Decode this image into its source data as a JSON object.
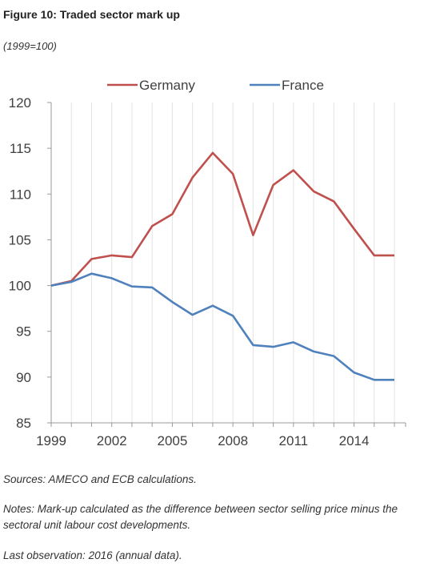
{
  "header": {
    "title": "Figure 10: Traded sector mark up",
    "subtitle": "(1999=100)"
  },
  "footer": {
    "sources": "Sources: AMECO and ECB calculations.",
    "notes": "Notes: Mark-up calculated as the difference between sector selling price minus the sectoral unit labour cost developments.",
    "last_observation": "Last observation: 2016 (annual data)."
  },
  "chart_data": {
    "type": "line",
    "title": "",
    "xlabel": "",
    "ylabel": "",
    "x": [
      1999,
      2000,
      2001,
      2002,
      2003,
      2004,
      2005,
      2006,
      2007,
      2008,
      2009,
      2010,
      2011,
      2012,
      2013,
      2014,
      2015,
      2016
    ],
    "x_tick_labels": [
      "1999",
      "2002",
      "2005",
      "2008",
      "2011",
      "2014"
    ],
    "x_ticks": [
      1999,
      2002,
      2005,
      2008,
      2011,
      2014
    ],
    "xlim": [
      1999,
      2016
    ],
    "ylim": [
      85,
      120
    ],
    "y_ticks": [
      85,
      90,
      95,
      100,
      105,
      110,
      115,
      120
    ],
    "y_tick_labels": [
      "85",
      "90",
      "95",
      "100",
      "105",
      "110",
      "115",
      "120"
    ],
    "grid": "vertical",
    "legend": "top-center",
    "series": [
      {
        "name": "Germany",
        "color": "#c0504d",
        "values": [
          100.0,
          100.5,
          102.9,
          103.3,
          103.1,
          106.5,
          107.8,
          111.8,
          114.5,
          112.2,
          105.5,
          111.0,
          112.6,
          110.3,
          109.2,
          106.2,
          103.3,
          103.3
        ]
      },
      {
        "name": "France",
        "color": "#4f81bd",
        "values": [
          100.0,
          100.4,
          101.3,
          100.8,
          99.9,
          99.8,
          98.2,
          96.8,
          97.8,
          96.7,
          93.5,
          93.3,
          93.8,
          92.8,
          92.3,
          90.5,
          89.7,
          89.7
        ]
      }
    ]
  }
}
